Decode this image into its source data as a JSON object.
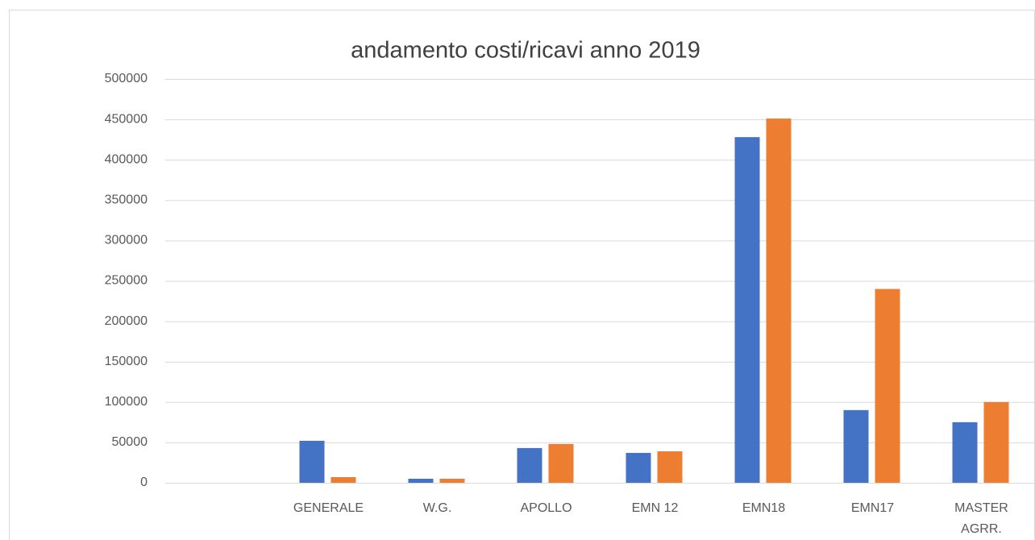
{
  "chart_data": {
    "type": "bar",
    "title": "andamento costi/ricavi anno 2019",
    "categories": [
      null,
      "GENERALE",
      "W.G.",
      "APOLLO",
      "EMN 12",
      "EMN18",
      "EMN17",
      "MASTER AGRR."
    ],
    "series": [
      {
        "color": "#4472c4",
        "values": [
          null,
          52000,
          5000,
          43000,
          37000,
          428000,
          90000,
          75000
        ]
      },
      {
        "color": "#ed7d31",
        "values": [
          null,
          7000,
          5000,
          48000,
          39000,
          451000,
          240000,
          100000
        ]
      }
    ],
    "ylim": [
      0,
      500000
    ],
    "yticks": [
      0,
      50000,
      100000,
      150000,
      200000,
      250000,
      300000,
      350000,
      400000,
      450000,
      500000
    ],
    "grid": true
  }
}
